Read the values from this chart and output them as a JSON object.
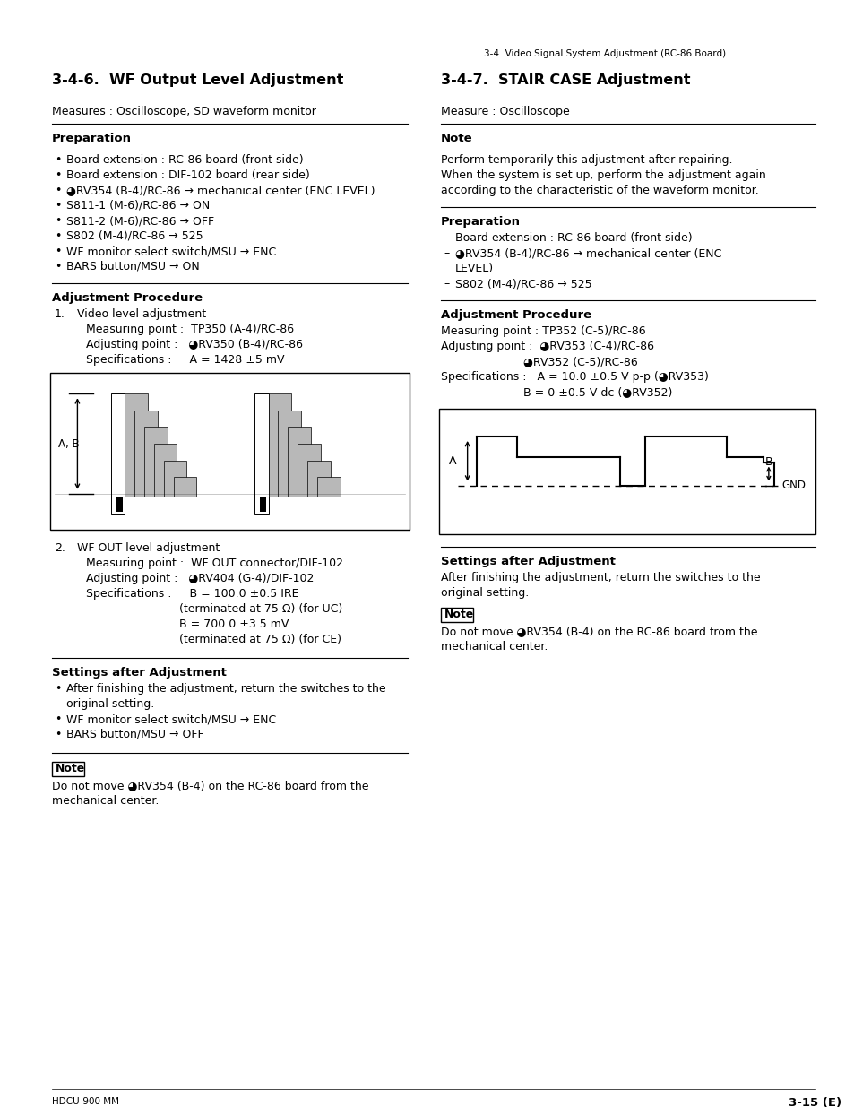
{
  "page_header": "3-4. Video Signal System Adjustment (RC-86 Board)",
  "left_title": "3-4-6.  WF Output Level Adjustment",
  "right_title": "3-4-7.  STAIR CASE Adjustment",
  "left_measure": "Measures : Oscilloscope, SD waveform monitor",
  "right_measure": "Measure : Oscilloscope",
  "right_note_intro_title": "Note",
  "right_note_intro_lines": [
    "Perform temporarily this adjustment after repairing.",
    "When the system is set up, perform the adjustment again",
    "according to the characteristic of the waveform monitor."
  ],
  "left_prep_title": "Preparation",
  "right_prep_title": "Preparation",
  "left_prep_items": [
    "Board extension : RC-86 board (front side)",
    "Board extension : DIF-102 board (rear side)",
    "◕RV354 (B-4)/RC-86 → mechanical center (ENC LEVEL)",
    "S811-1 (M-6)/RC-86 → ON",
    "S811-2 (M-6)/RC-86 → OFF",
    "S802 (M-4)/RC-86 → 525",
    "WF monitor select switch/MSU → ENC",
    "BARS button/MSU → ON"
  ],
  "right_prep_item1": "Board extension : RC-86 board (front side)",
  "right_prep_item2a": "◕RV354 (B-4)/RC-86 → mechanical center (ENC",
  "right_prep_item2b": "LEVEL)",
  "right_prep_item3": "S802 (M-4)/RC-86 → 525",
  "left_adj_title": "Adjustment Procedure",
  "right_adj_title": "Adjustment Procedure",
  "left_adj1_label": "Video level adjustment",
  "left_adj1_lines": [
    "Measuring point :  TP350 (A-4)/RC-86",
    "Adjusting point :   ◕RV350 (B-4)/RC-86",
    "Specifications :     A = 1428 ±5 mV"
  ],
  "left_adj2_label": "WF OUT level adjustment",
  "left_adj2_line1": "Measuring point :  WF OUT connector/DIF-102",
  "left_adj2_line2": "Adjusting point :   ◕RV404 (G-4)/DIF-102",
  "left_adj2_line3": "Specifications :     B = 100.0 ±0.5 IRE",
  "left_adj2_line4": "                          (terminated at 75 Ω) (for UC)",
  "left_adj2_line5": "                          B = 700.0 ±3.5 mV",
  "left_adj2_line6": "                          (terminated at 75 Ω) (for CE)",
  "right_adj_line1": "Measuring point : TP352 (C-5)/RC-86",
  "right_adj_line2": "Adjusting point :  ◕RV353 (C-4)/RC-86",
  "right_adj_line3": "                       ◕RV352 (C-5)/RC-86",
  "right_adj_line4": "Specifications :   A = 10.0 ±0.5 V p-p (◕RV353)",
  "right_adj_line5": "                       B = 0 ±0.5 V dc (◕RV352)",
  "left_settings_title": "Settings after Adjustment",
  "right_settings_title": "Settings after Adjustment",
  "left_settings_line1a": "After finishing the adjustment, return the switches to the",
  "left_settings_line1b": "original setting.",
  "left_settings_line2": "WF monitor select switch/MSU → ENC",
  "left_settings_line3": "BARS button/MSU → OFF",
  "right_settings_line1a": "After finishing the adjustment, return the switches to the",
  "right_settings_line1b": "original setting.",
  "left_note_label": "Note",
  "left_note_line1": "Do not move ◕RV354 (B-4) on the RC-86 board from the",
  "left_note_line2": "mechanical center.",
  "right_note_label": "Note",
  "right_note_line1": "Do not move ◕RV354 (B-4) on the RC-86 board from the",
  "right_note_line2": "mechanical center.",
  "footer_left": "HDCU-900 MM",
  "footer_right": "3-15 (E)",
  "bg_color": "#ffffff",
  "text_color": "#000000"
}
